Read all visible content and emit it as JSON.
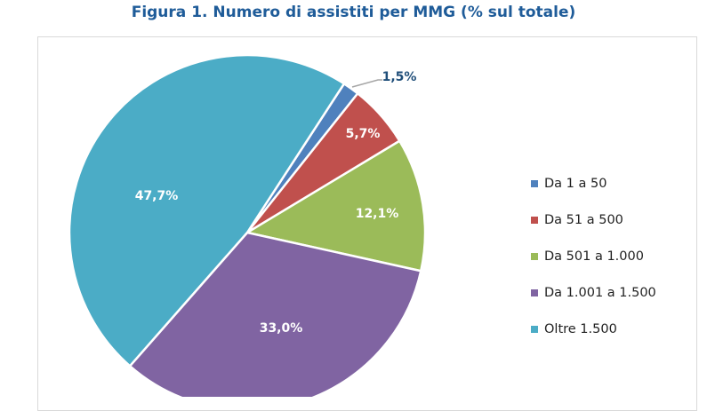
{
  "chart_data": {
    "type": "pie",
    "title": "Figura 1. Numero di assistiti per MMG (% sul totale)",
    "categories": [
      "Da 1 a 50",
      "Da 51 a 500",
      "Da 501 a 1.000",
      "Da 1.001 a 1.500",
      "Oltre 1.500"
    ],
    "values": [
      1.5,
      5.7,
      12.1,
      33.0,
      47.7
    ],
    "labels": [
      "1,5%",
      "5,7%",
      "12,1%",
      "33,0%",
      "47,7%"
    ],
    "colors": [
      "#4f81bd",
      "#c0504d",
      "#9bbb59",
      "#8064a2",
      "#4bacc6"
    ],
    "legend": "right",
    "outside_label_color": "#1f4e79"
  }
}
